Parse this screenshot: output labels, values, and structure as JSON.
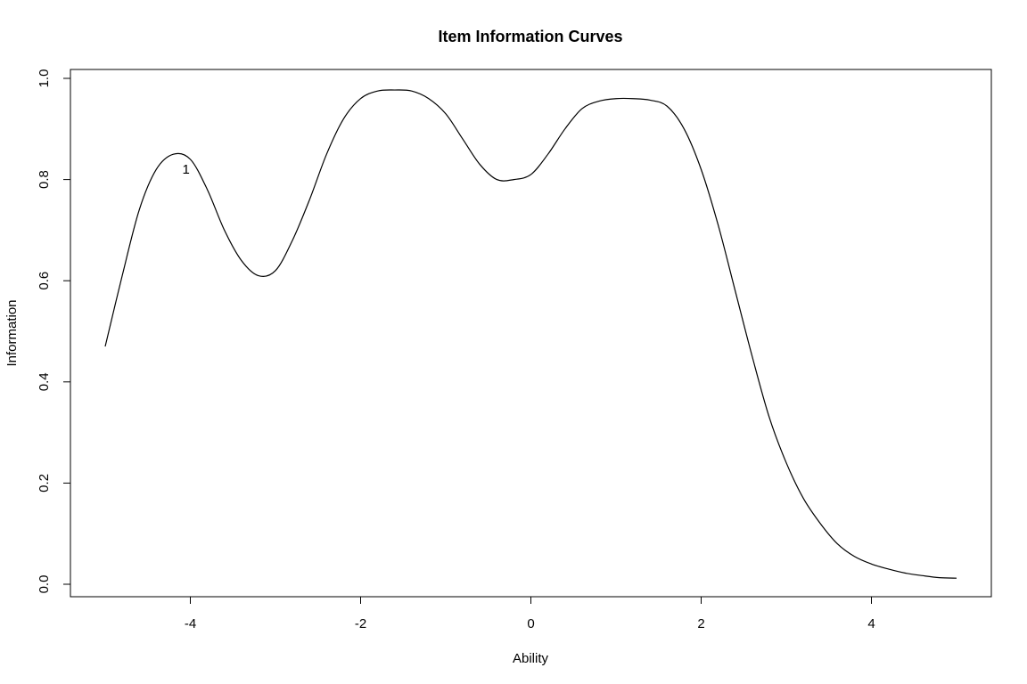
{
  "chart_data": {
    "type": "line",
    "title": "Item Information Curves",
    "xlabel": "Ability",
    "ylabel": "Information",
    "xlim": [
      -5,
      5
    ],
    "ylim": [
      0,
      1
    ],
    "x_ticks": [
      "-4",
      "-2",
      "0",
      "2",
      "4"
    ],
    "y_ticks": [
      "0.0",
      "0.2",
      "0.4",
      "0.6",
      "0.8",
      "1.0"
    ],
    "grid": false,
    "line_color": "#000000",
    "series": [
      {
        "label": "1",
        "label_x": -4.05,
        "label_y": 0.82,
        "x": [
          -5.0,
          -4.8,
          -4.6,
          -4.4,
          -4.2,
          -4.0,
          -3.8,
          -3.6,
          -3.4,
          -3.2,
          -3.0,
          -2.8,
          -2.6,
          -2.4,
          -2.2,
          -2.0,
          -1.8,
          -1.6,
          -1.4,
          -1.2,
          -1.0,
          -0.8,
          -0.6,
          -0.4,
          -0.2,
          0.0,
          0.2,
          0.4,
          0.6,
          0.8,
          1.0,
          1.2,
          1.4,
          1.6,
          1.8,
          2.0,
          2.2,
          2.4,
          2.6,
          2.8,
          3.0,
          3.2,
          3.4,
          3.6,
          3.8,
          4.0,
          4.2,
          4.4,
          4.6,
          4.8,
          5.0
        ],
        "y": [
          0.47,
          0.61,
          0.74,
          0.82,
          0.85,
          0.84,
          0.78,
          0.7,
          0.64,
          0.61,
          0.62,
          0.68,
          0.76,
          0.85,
          0.92,
          0.96,
          0.975,
          0.977,
          0.975,
          0.96,
          0.93,
          0.88,
          0.83,
          0.8,
          0.8,
          0.81,
          0.85,
          0.9,
          0.94,
          0.955,
          0.96,
          0.96,
          0.957,
          0.945,
          0.9,
          0.82,
          0.71,
          0.58,
          0.45,
          0.33,
          0.24,
          0.17,
          0.12,
          0.08,
          0.055,
          0.04,
          0.03,
          0.022,
          0.017,
          0.013,
          0.012
        ]
      }
    ]
  }
}
